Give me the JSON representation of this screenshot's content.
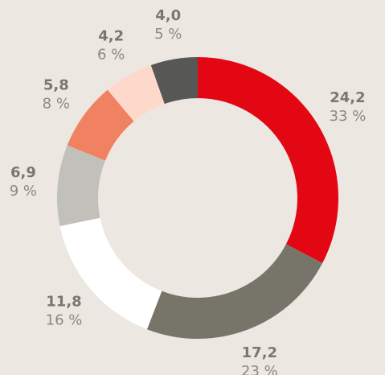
{
  "chart_data": {
    "type": "pie",
    "values": [
      24.2,
      17.2,
      11.8,
      6.9,
      5.8,
      4.2,
      4.0
    ],
    "value_labels": [
      "24,2",
      "17,2",
      "11,8",
      "6,9",
      "5,8",
      "4,2",
      "4,0"
    ],
    "percent_values": [
      33,
      23,
      16,
      9,
      8,
      6,
      5
    ],
    "percent_labels": [
      "33 %",
      "23 %",
      "16 %",
      "9 %",
      "8 %",
      "6 %",
      "5 %"
    ],
    "colors": [
      "#e30613",
      "#777569",
      "#ffffff",
      "#c2c0ba",
      "#f08262",
      "#fdd9cc",
      "#575756"
    ]
  }
}
